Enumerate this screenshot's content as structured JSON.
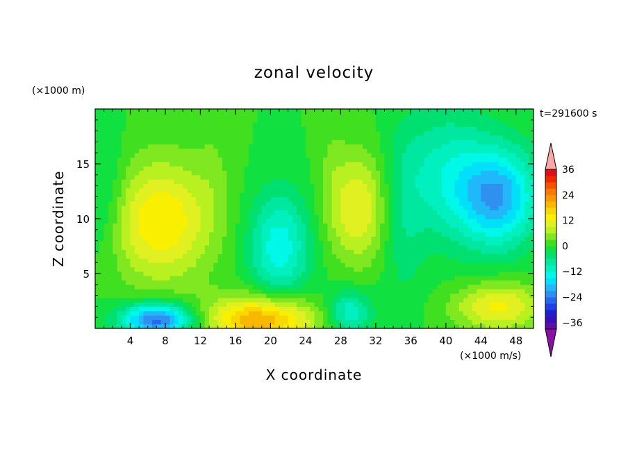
{
  "chart_data": {
    "type": "heatmap",
    "title": "zonal velocity",
    "xlabel": "X coordinate",
    "ylabel": "Z coordinate",
    "x_unit": "(×1000 m/s)",
    "y_unit": "(×1000 m)",
    "time_label": "t=291600 s",
    "xlim": [
      0,
      50
    ],
    "ylim": [
      0,
      20
    ],
    "x_ticks": [
      4,
      8,
      12,
      16,
      20,
      24,
      28,
      32,
      36,
      40,
      44,
      48
    ],
    "y_ticks": [
      5,
      10,
      15
    ],
    "colorbar": {
      "levels": [
        -42,
        -39,
        -36,
        -33,
        -30,
        -27,
        -24,
        -21,
        -18,
        -15,
        -12,
        -9,
        -6,
        -3,
        0,
        3,
        6,
        9,
        12,
        15,
        18,
        21,
        24,
        27,
        30,
        33,
        36,
        39
      ],
      "labels": [
        36,
        24,
        12,
        0,
        -12,
        -24,
        -36
      ],
      "colors": [
        "#8c10a8",
        "#5a10a8",
        "#3a10b8",
        "#2020d0",
        "#2040e8",
        "#2868f0",
        "#3090f0",
        "#20b8f8",
        "#00e0f8",
        "#00f8e8",
        "#00f0c0",
        "#00e8a0",
        "#00e070",
        "#10e040",
        "#40e020",
        "#80e820",
        "#b8f020",
        "#e0f020",
        "#f8f000",
        "#f8d800",
        "#f8b800",
        "#f89800",
        "#f87800",
        "#f85000",
        "#f02800",
        "#e01010",
        "#f8a8a8"
      ]
    },
    "features": [
      {
        "x": 7.5,
        "z": 9.8,
        "value": 15,
        "rx": 6,
        "rz": 5.5
      },
      {
        "x": 30,
        "z": 11,
        "value": 12,
        "rx": 3.5,
        "rz": 5
      },
      {
        "x": 19,
        "z": 0.8,
        "value": 22,
        "rx": 6,
        "rz": 2.2
      },
      {
        "x": 7,
        "z": 0.8,
        "value": -26,
        "rx": 4,
        "rz": 1.5
      },
      {
        "x": 21,
        "z": 7.5,
        "value": -14,
        "rx": 3.5,
        "rz": 5
      },
      {
        "x": 46,
        "z": 12,
        "value": -20,
        "rx": 4.5,
        "rz": 4.5
      },
      {
        "x": 46,
        "z": 2,
        "value": 13,
        "rx": 5,
        "rz": 2.2
      },
      {
        "x": 29,
        "z": 1.5,
        "value": -12,
        "rx": 2.5,
        "rz": 2
      },
      {
        "x": 1,
        "z": 12,
        "value": -6,
        "rx": 2.5,
        "rz": 6
      },
      {
        "x": 40,
        "z": 14,
        "value": -10,
        "rx": 5,
        "rz": 6
      },
      {
        "x": 35,
        "z": 10,
        "value": -5,
        "rx": 2.5,
        "rz": 8
      },
      {
        "x": 13.5,
        "z": 15,
        "value": 2,
        "rx": 2,
        "rz": 5
      },
      {
        "x": 27,
        "z": 15,
        "value": 2,
        "rx": 1.5,
        "rz": 6
      }
    ]
  }
}
